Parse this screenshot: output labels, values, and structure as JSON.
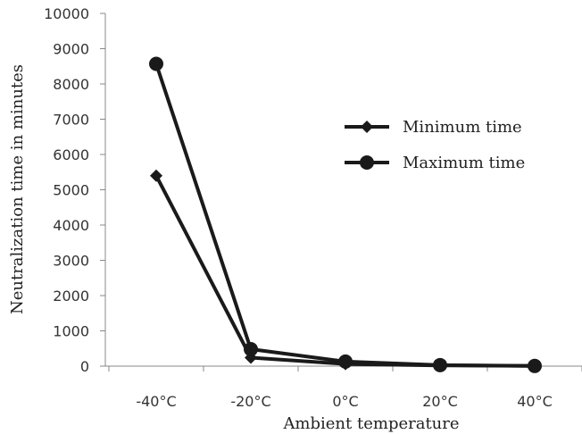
{
  "chart_data": {
    "type": "line",
    "categories": [
      "-40°C",
      "-20°C",
      "0°C",
      "20°C",
      "40°C"
    ],
    "series": [
      {
        "name": "Minimum time",
        "values": [
          5400,
          240,
          60,
          20,
          5
        ],
        "marker": "diamond",
        "color": "#1a1a1a"
      },
      {
        "name": "Maximum time",
        "values": [
          8570,
          480,
          130,
          30,
          5
        ],
        "marker": "circle",
        "color": "#1a1a1a"
      }
    ],
    "xlabel": "Ambient temperature",
    "ylabel": "Neutralization time in minutes",
    "ylim": [
      0,
      10000
    ],
    "yticks": [
      0,
      1000,
      2000,
      3000,
      4000,
      5000,
      6000,
      7000,
      8000,
      9000,
      10000
    ],
    "grid": false,
    "legend_position": "right"
  }
}
